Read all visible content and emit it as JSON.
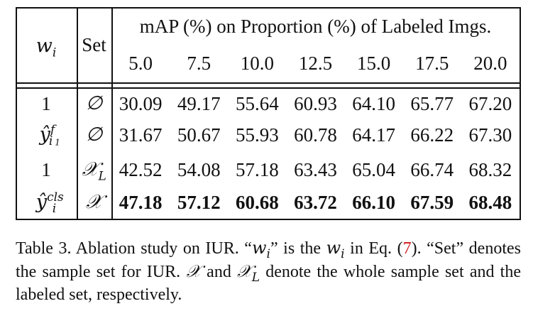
{
  "table": {
    "header": {
      "col_wi": "w",
      "col_wi_sub": "i",
      "col_set": "Set",
      "group_title": "mAP (%) on Proportion (%) of Labeled Imgs.",
      "proportions": [
        "5.0",
        "7.5",
        "10.0",
        "12.5",
        "15.0",
        "17.5",
        "20.0"
      ]
    },
    "rows": [
      {
        "wi": "1",
        "wi_hat": false,
        "wi_sup": "",
        "wi_sub": "",
        "set": "∅",
        "set_sub": "",
        "values": [
          "30.09",
          "49.17",
          "55.64",
          "60.93",
          "64.10",
          "65.77",
          "67.20"
        ],
        "bold": false
      },
      {
        "wi": "ŷ",
        "wi_hat": true,
        "wi_sup": "f",
        "wi_sup_sub": "1",
        "wi_sub": "i",
        "set": "∅",
        "set_sub": "",
        "values": [
          "31.67",
          "50.67",
          "55.93",
          "60.78",
          "64.17",
          "66.22",
          "67.30"
        ],
        "bold": false
      },
      {
        "wi": "1",
        "wi_hat": false,
        "wi_sup": "",
        "wi_sub": "",
        "set": "𝒳",
        "set_sub": "L",
        "values": [
          "42.52",
          "54.08",
          "57.18",
          "63.43",
          "65.04",
          "66.74",
          "68.32"
        ],
        "bold": false
      },
      {
        "wi": "ŷ",
        "wi_hat": true,
        "wi_sup": "cls",
        "wi_sub": "i",
        "set": "𝒳",
        "set_sub": "",
        "values": [
          "47.18",
          "57.12",
          "60.68",
          "63.72",
          "66.10",
          "67.59",
          "68.48"
        ],
        "bold": true
      }
    ]
  },
  "caption": {
    "prefix": "Table 3. Ablation study on IUR. “",
    "wi_var": "w",
    "wi_sub": "i",
    "mid1": "” is the ",
    "mid2": " in Eq. (",
    "eq_ref": "7",
    "mid3": "). “Set” denotes the sample set for IUR. ",
    "set_x": "𝒳",
    "mid4": " and ",
    "set_xl": "𝒳",
    "set_xl_sub": "L",
    "suffix": " denote the whole sample set and the labeled set, respectively."
  }
}
